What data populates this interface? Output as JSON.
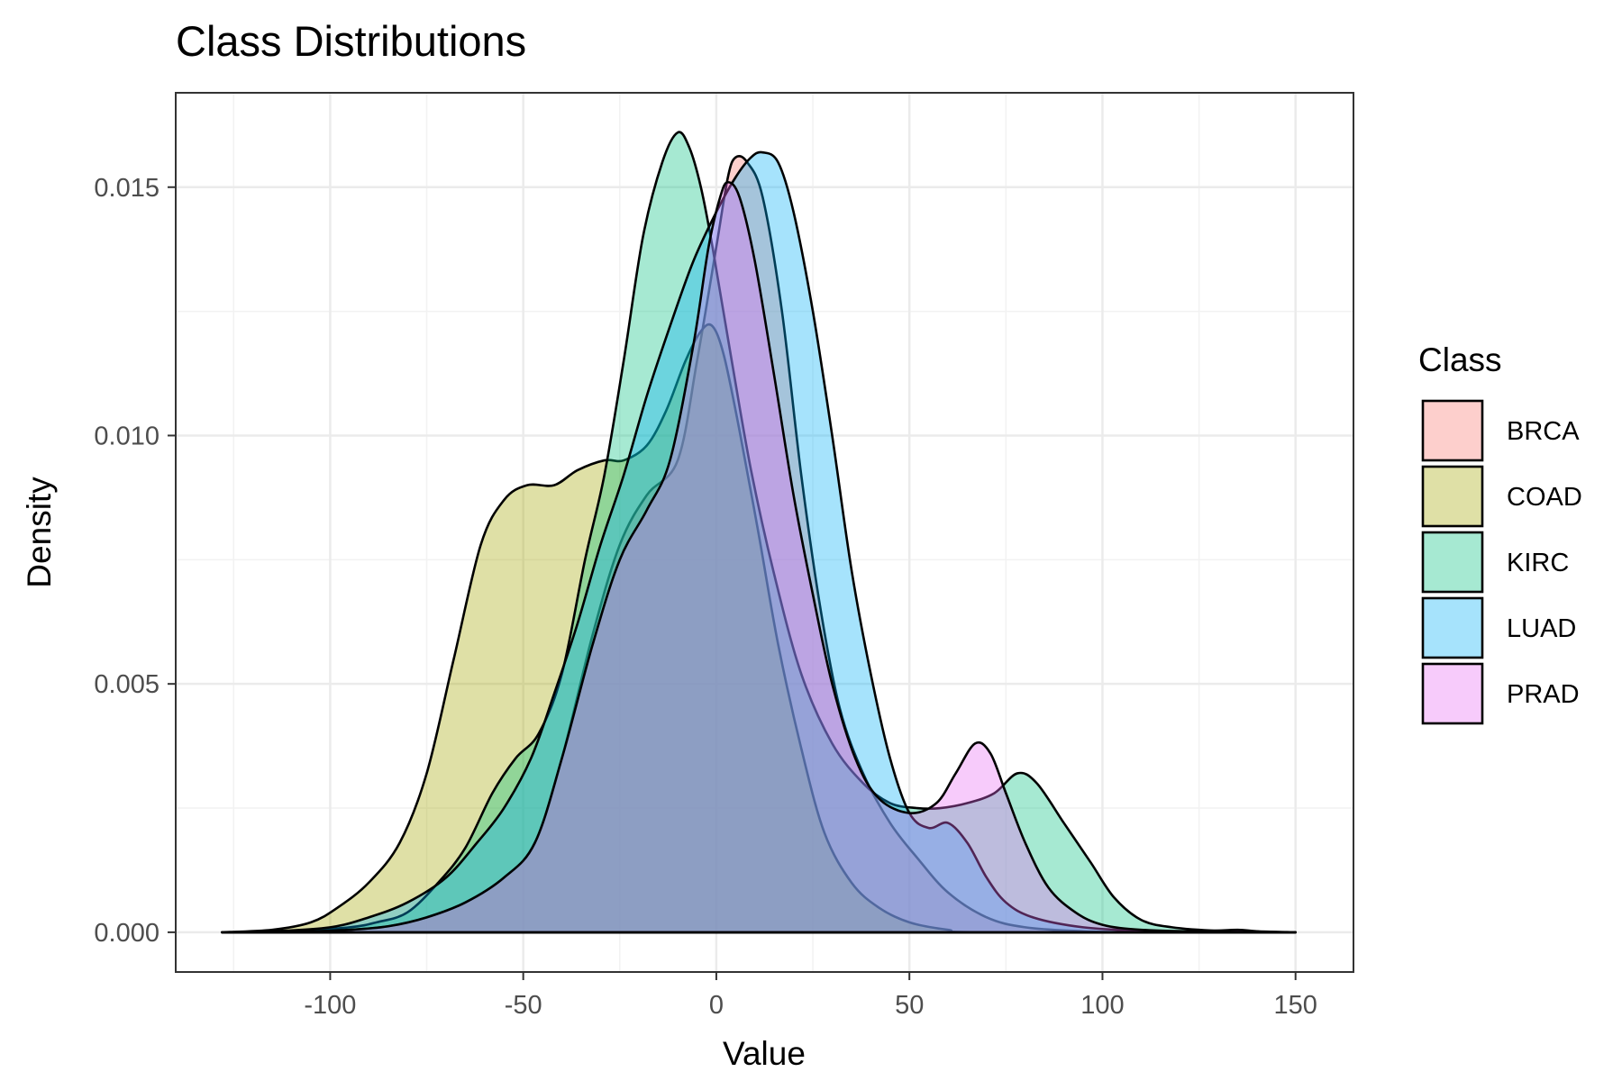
{
  "chart_data": {
    "type": "area",
    "title": "Class Distributions",
    "xlabel": "Value",
    "ylabel": "Density",
    "xlim": [
      -140,
      165
    ],
    "ylim": [
      -0.0008,
      0.0169
    ],
    "x_ticks": [
      -100,
      -50,
      0,
      50,
      100,
      150
    ],
    "x_tick_labels": [
      "-100",
      "-50",
      "0",
      "50",
      "100",
      "150"
    ],
    "y_ticks": [
      0.0,
      0.005,
      0.01,
      0.015
    ],
    "y_tick_labels": [
      "0.000",
      "0.005",
      "0.010",
      "0.015"
    ],
    "grid": true,
    "legend": {
      "title": "Class",
      "position": "right"
    },
    "series": [
      {
        "name": "BRCA",
        "color": "#F8766D",
        "points": [
          [
            -128,
            0
          ],
          [
            -110,
            1e-05
          ],
          [
            -95,
            5e-05
          ],
          [
            -85,
            0.00012
          ],
          [
            -75,
            0.0003
          ],
          [
            -65,
            0.0006
          ],
          [
            -55,
            0.0011
          ],
          [
            -47,
            0.0018
          ],
          [
            -40,
            0.0035
          ],
          [
            -32,
            0.006
          ],
          [
            -25,
            0.0078
          ],
          [
            -18,
            0.0088
          ],
          [
            -10,
            0.0095
          ],
          [
            -5,
            0.0115
          ],
          [
            0,
            0.0138
          ],
          [
            3,
            0.0152
          ],
          [
            5,
            0.0156
          ],
          [
            8,
            0.0155
          ],
          [
            12,
            0.0148
          ],
          [
            17,
            0.0125
          ],
          [
            22,
            0.0092
          ],
          [
            27,
            0.0065
          ],
          [
            32,
            0.0045
          ],
          [
            38,
            0.0032
          ],
          [
            45,
            0.0022
          ],
          [
            52,
            0.0015
          ],
          [
            60,
            0.0008
          ],
          [
            70,
            0.0003
          ],
          [
            80,
            0.0001
          ],
          [
            95,
            2e-05
          ],
          [
            110,
            0
          ],
          [
            150,
            0
          ]
        ]
      },
      {
        "name": "COAD",
        "color": "#A3A500",
        "points": [
          [
            -128,
            0
          ],
          [
            -115,
            5e-05
          ],
          [
            -105,
            0.0002
          ],
          [
            -98,
            0.0005
          ],
          [
            -90,
            0.001
          ],
          [
            -82,
            0.0018
          ],
          [
            -75,
            0.0032
          ],
          [
            -68,
            0.0055
          ],
          [
            -61,
            0.0078
          ],
          [
            -55,
            0.0087
          ],
          [
            -49,
            0.009
          ],
          [
            -42,
            0.009
          ],
          [
            -36,
            0.0093
          ],
          [
            -29,
            0.0095
          ],
          [
            -24,
            0.0095
          ],
          [
            -18,
            0.0098
          ],
          [
            -13,
            0.0105
          ],
          [
            -8,
            0.0115
          ],
          [
            -4,
            0.0121
          ],
          [
            -1,
            0.0122
          ],
          [
            2,
            0.0116
          ],
          [
            6,
            0.0101
          ],
          [
            11,
            0.008
          ],
          [
            16,
            0.0058
          ],
          [
            22,
            0.0037
          ],
          [
            28,
            0.002
          ],
          [
            35,
            0.001
          ],
          [
            42,
            0.0005
          ],
          [
            50,
            0.0002
          ],
          [
            60,
            5e-05
          ],
          [
            70,
            0
          ],
          [
            150,
            0
          ]
        ]
      },
      {
        "name": "KIRC",
        "color": "#00BF7D",
        "points": [
          [
            -128,
            0
          ],
          [
            -110,
            2e-05
          ],
          [
            -95,
            0.0001
          ],
          [
            -88,
            0.0002
          ],
          [
            -80,
            0.0004
          ],
          [
            -72,
            0.001
          ],
          [
            -65,
            0.0017
          ],
          [
            -58,
            0.0028
          ],
          [
            -52,
            0.0035
          ],
          [
            -46,
            0.004
          ],
          [
            -40,
            0.0052
          ],
          [
            -34,
            0.0075
          ],
          [
            -29,
            0.0092
          ],
          [
            -24,
            0.0115
          ],
          [
            -19,
            0.014
          ],
          [
            -14,
            0.0155
          ],
          [
            -10,
            0.0161
          ],
          [
            -7,
            0.0158
          ],
          [
            -4,
            0.015
          ],
          [
            -1,
            0.0138
          ],
          [
            4,
            0.0115
          ],
          [
            9,
            0.0093
          ],
          [
            15,
            0.0072
          ],
          [
            22,
            0.0052
          ],
          [
            30,
            0.0038
          ],
          [
            38,
            0.003
          ],
          [
            45,
            0.0026
          ],
          [
            52,
            0.0025
          ],
          [
            58,
            0.0025
          ],
          [
            65,
            0.0026
          ],
          [
            72,
            0.0028
          ],
          [
            78,
            0.0032
          ],
          [
            83,
            0.003
          ],
          [
            90,
            0.0022
          ],
          [
            97,
            0.0014
          ],
          [
            103,
            0.0007
          ],
          [
            110,
            0.00025
          ],
          [
            118,
            0.0001
          ],
          [
            130,
            3e-05
          ],
          [
            150,
            0
          ]
        ]
      },
      {
        "name": "LUAD",
        "color": "#00B0F6",
        "points": [
          [
            -128,
            0
          ],
          [
            -115,
            2e-05
          ],
          [
            -100,
            0.0001
          ],
          [
            -90,
            0.0003
          ],
          [
            -80,
            0.0006
          ],
          [
            -70,
            0.0011
          ],
          [
            -62,
            0.0018
          ],
          [
            -55,
            0.0025
          ],
          [
            -48,
            0.0035
          ],
          [
            -42,
            0.0048
          ],
          [
            -36,
            0.0062
          ],
          [
            -30,
            0.0078
          ],
          [
            -24,
            0.0092
          ],
          [
            -18,
            0.0108
          ],
          [
            -12,
            0.0122
          ],
          [
            -6,
            0.0135
          ],
          [
            0,
            0.0145
          ],
          [
            5,
            0.0152
          ],
          [
            9,
            0.0156
          ],
          [
            12,
            0.0157
          ],
          [
            16,
            0.0155
          ],
          [
            20,
            0.0145
          ],
          [
            25,
            0.0125
          ],
          [
            30,
            0.01
          ],
          [
            35,
            0.0073
          ],
          [
            40,
            0.0052
          ],
          [
            45,
            0.0035
          ],
          [
            50,
            0.0024
          ],
          [
            55,
            0.0021
          ],
          [
            60,
            0.0022
          ],
          [
            65,
            0.0018
          ],
          [
            70,
            0.0011
          ],
          [
            75,
            0.0006
          ],
          [
            82,
            0.0003
          ],
          [
            95,
            0.0001
          ],
          [
            110,
            3e-05
          ],
          [
            130,
            0
          ],
          [
            150,
            0
          ]
        ]
      },
      {
        "name": "PRAD",
        "color": "#E76BF3",
        "points": [
          [
            -128,
            0
          ],
          [
            -110,
            1e-05
          ],
          [
            -95,
            5e-05
          ],
          [
            -85,
            0.00012
          ],
          [
            -75,
            0.0003
          ],
          [
            -65,
            0.0006
          ],
          [
            -55,
            0.0011
          ],
          [
            -47,
            0.0018
          ],
          [
            -40,
            0.0035
          ],
          [
            -32,
            0.0058
          ],
          [
            -25,
            0.0075
          ],
          [
            -18,
            0.0085
          ],
          [
            -12,
            0.0095
          ],
          [
            -6,
            0.0118
          ],
          [
            -2,
            0.0138
          ],
          [
            1,
            0.0148
          ],
          [
            3,
            0.0151
          ],
          [
            6,
            0.0148
          ],
          [
            10,
            0.0135
          ],
          [
            15,
            0.0112
          ],
          [
            20,
            0.0088
          ],
          [
            25,
            0.0068
          ],
          [
            30,
            0.005
          ],
          [
            36,
            0.0035
          ],
          [
            42,
            0.0027
          ],
          [
            50,
            0.0024
          ],
          [
            57,
            0.0026
          ],
          [
            62,
            0.0032
          ],
          [
            67,
            0.0038
          ],
          [
            71,
            0.0036
          ],
          [
            75,
            0.0028
          ],
          [
            80,
            0.0018
          ],
          [
            86,
            0.0009
          ],
          [
            93,
            0.0004
          ],
          [
            100,
            0.00015
          ],
          [
            110,
            5e-05
          ],
          [
            125,
            2e-05
          ],
          [
            135,
            5e-05
          ],
          [
            140,
            2e-05
          ],
          [
            150,
            0
          ]
        ]
      }
    ]
  }
}
